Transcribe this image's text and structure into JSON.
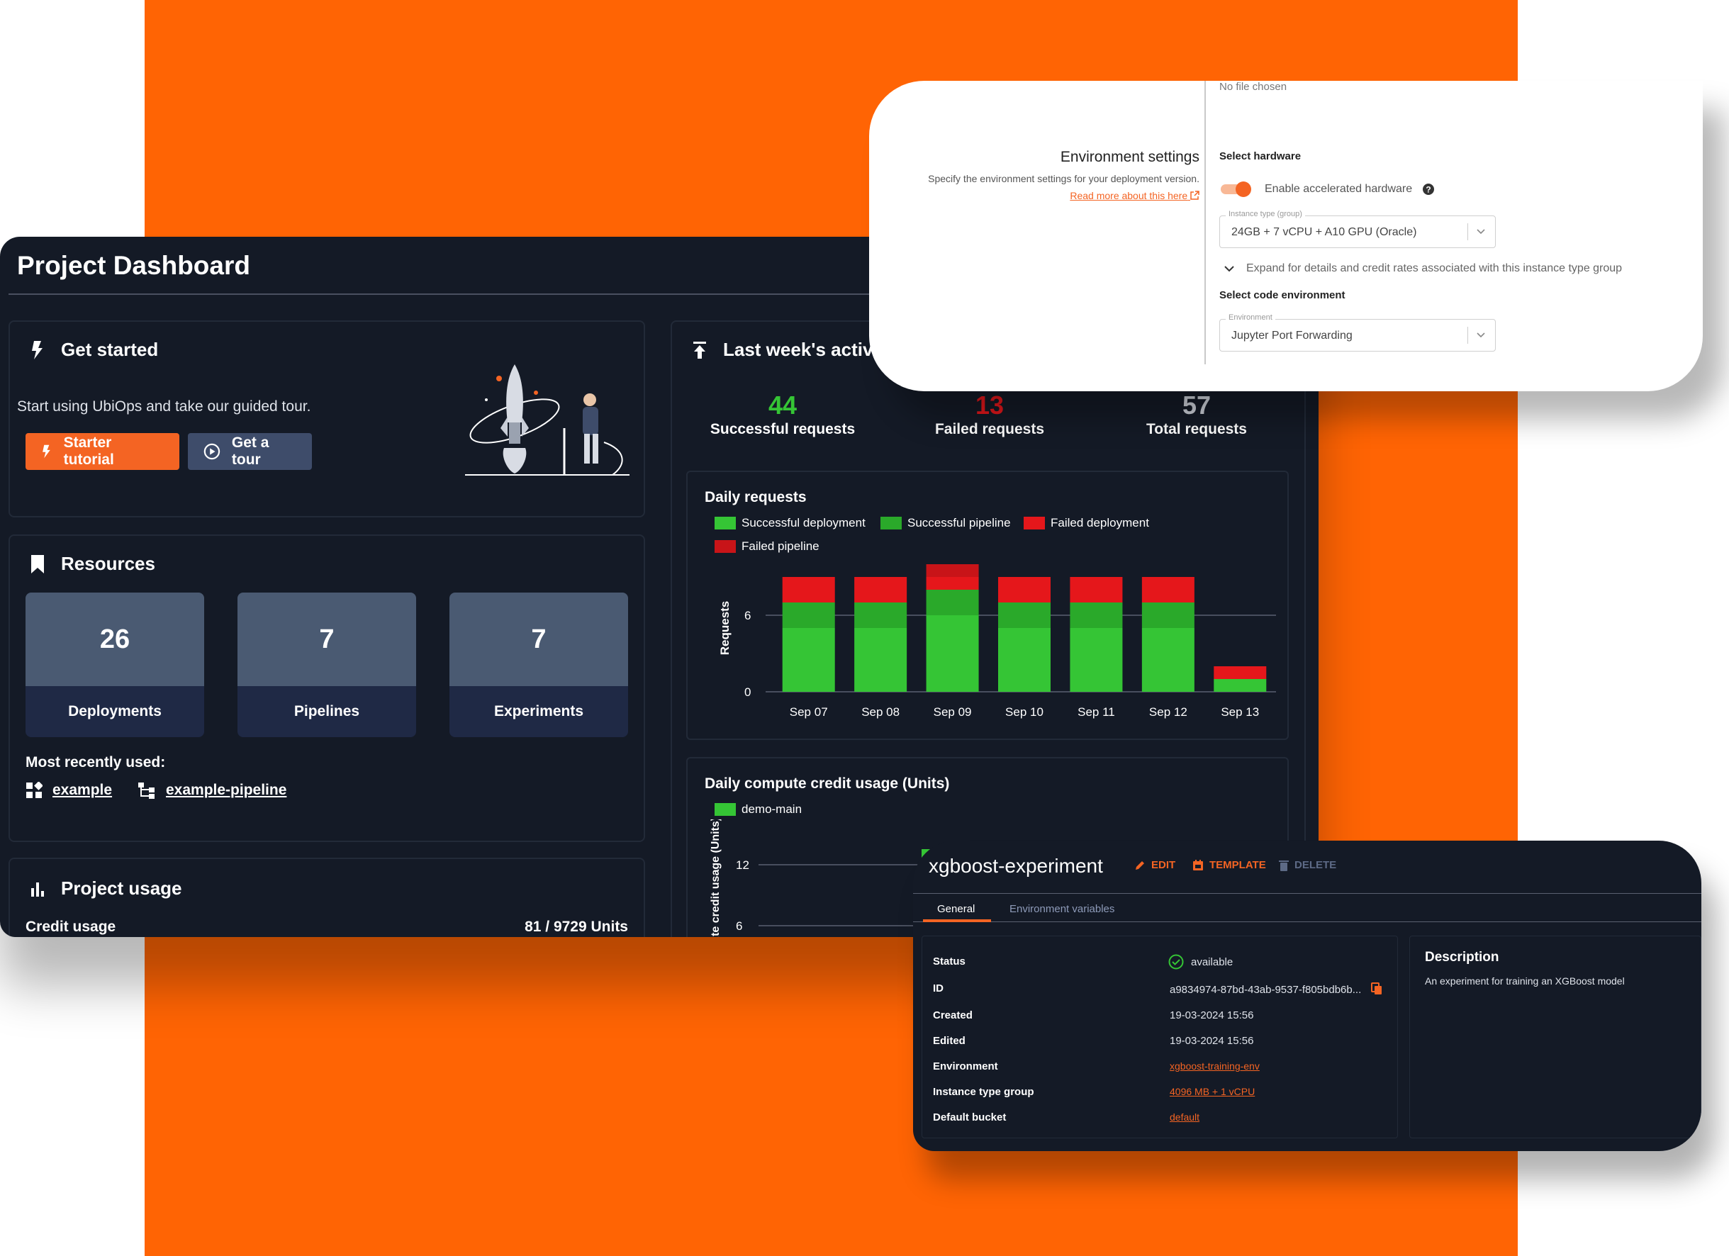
{
  "dashboard": {
    "title": "Project Dashboard",
    "get_started": {
      "title": "Get started",
      "text": "Start using UbiOps and take our guided tour.",
      "tutorial_button": "Starter tutorial",
      "tour_button": "Get a tour"
    },
    "resources": {
      "title": "Resources",
      "items": [
        {
          "count": "26",
          "label": "Deployments"
        },
        {
          "count": "7",
          "label": "Pipelines"
        },
        {
          "count": "7",
          "label": "Experiments"
        }
      ],
      "recent_label": "Most recently used:",
      "recent": [
        {
          "label": "example",
          "icon": "deployment-icon"
        },
        {
          "label": "example-pipeline",
          "icon": "pipeline-icon"
        }
      ]
    },
    "project_usage": {
      "title": "Project usage",
      "credit_label": "Credit usage",
      "credit_value": "81 / 9729 Units"
    },
    "activity": {
      "title": "Last week's activity",
      "stats": [
        {
          "value": "44",
          "label": "Successful requests",
          "color": "#35c535"
        },
        {
          "value": "13",
          "label": "Failed requests",
          "color": "#e5171b"
        },
        {
          "value": "57",
          "label": "Total requests",
          "color": "#d0d4dc"
        }
      ]
    }
  },
  "chart_data": [
    {
      "type": "bar",
      "stacked": true,
      "title": "Daily requests",
      "ylabel": "Requests",
      "xlabel": "",
      "ylim": [
        0,
        10
      ],
      "yticks": [
        0,
        6
      ],
      "categories": [
        "Sep 07",
        "Sep 08",
        "Sep 09",
        "Sep 10",
        "Sep 11",
        "Sep 12",
        "Sep 13"
      ],
      "series": [
        {
          "name": "Successful deployment",
          "color": "#35c535",
          "values": [
            5,
            5,
            6,
            5,
            5,
            5,
            1
          ]
        },
        {
          "name": "Successful pipeline",
          "color": "#2aa92a",
          "values": [
            2,
            2,
            2,
            2,
            2,
            2,
            0
          ]
        },
        {
          "name": "Failed deployment",
          "color": "#e5171b",
          "values": [
            2,
            2,
            1,
            2,
            2,
            2,
            1
          ]
        },
        {
          "name": "Failed pipeline",
          "color": "#c81418",
          "values": [
            0,
            0,
            1,
            0,
            0,
            0,
            0
          ]
        }
      ],
      "legend_position": "top-left",
      "grid": true
    },
    {
      "type": "bar",
      "title": "Daily compute credit usage (Units)",
      "ylabel": "Compute credit usage (Units)",
      "yticks": [
        6,
        12
      ],
      "series": [
        {
          "name": "demo-main",
          "color": "#35c535"
        }
      ],
      "legend_position": "top-left",
      "grid": true
    }
  ],
  "environment": {
    "file_status": "No file chosen",
    "title": "Environment settings",
    "description": "Specify the environment settings for your deployment version.",
    "read_more": "Read more about this here",
    "hardware_heading": "Select hardware",
    "accelerated_toggle": "Enable accelerated hardware",
    "instance_label": "Instance type (group)",
    "instance_value": "24GB + 7 vCPU + A10 GPU (Oracle)",
    "expand_text": "Expand for details and credit rates associated with this instance type group",
    "code_env_heading": "Select code environment",
    "env_label": "Environment",
    "env_value": "Jupyter Port Forwarding",
    "accent": "#F46423"
  },
  "experiment": {
    "title": "xgboost-experiment",
    "edit": "EDIT",
    "template": "TEMPLATE",
    "delete": "DELETE",
    "tabs": [
      "General",
      "Environment variables"
    ],
    "fields": [
      {
        "key": "Status",
        "value": "available"
      },
      {
        "key": "ID",
        "value": "a9834974-87bd-43ab-9537-f805bdb6b..."
      },
      {
        "key": "Created",
        "value": "19-03-2024 15:56"
      },
      {
        "key": "Edited",
        "value": "19-03-2024 15:56"
      },
      {
        "key": "Environment",
        "value": "xgboost-training-env"
      },
      {
        "key": "Instance type group",
        "value": "4096 MB + 1 vCPU"
      },
      {
        "key": "Default bucket",
        "value": "default"
      }
    ],
    "description_title": "Description",
    "description_text": "An experiment for training an XGBoost model"
  }
}
